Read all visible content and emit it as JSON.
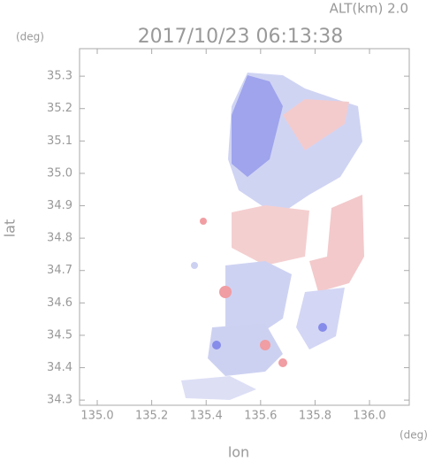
{
  "chart_data": {
    "type": "radar-image",
    "title": "2017/10/23 06:13:38",
    "subtitle": "ALT(km) 2.0",
    "y_unit": "(deg)",
    "x_unit": "(deg)",
    "xlabel": "lon",
    "ylabel": "lat",
    "xlim": [
      134.935,
      136.146
    ],
    "ylim": [
      34.284,
      35.385
    ],
    "xticks": [
      {
        "value": 135.0,
        "label": "135.0"
      },
      135.2,
      135.4,
      135.6,
      135.8,
      {
        "value": 136.0,
        "label": "136.0"
      }
    ],
    "yticks": [
      34.3,
      34.4,
      34.5,
      34.6,
      34.7,
      34.8,
      34.9,
      {
        "value": 35.0,
        "label": "35.0"
      },
      35.1,
      35.2,
      35.3
    ]
  }
}
